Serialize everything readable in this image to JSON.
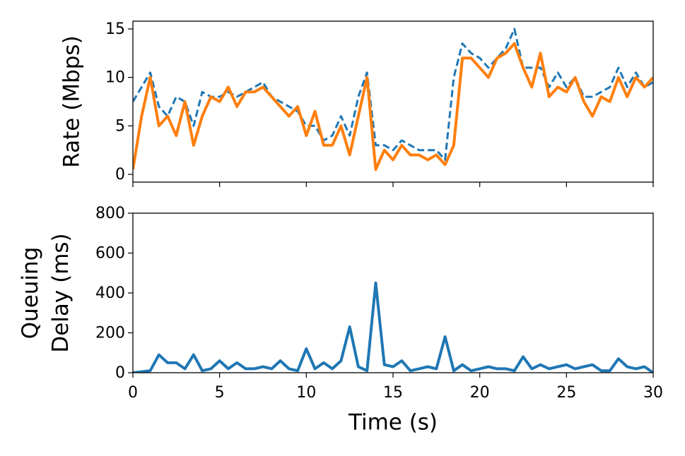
{
  "chart_data": [
    {
      "type": "line",
      "x": [
        0,
        0.5,
        1,
        1.5,
        2,
        2.5,
        3,
        3.5,
        4,
        4.5,
        5,
        5.5,
        6,
        6.5,
        7,
        7.5,
        8,
        8.5,
        9,
        9.5,
        10,
        10.5,
        11,
        11.5,
        12,
        12.5,
        13,
        13.5,
        14,
        14.5,
        15,
        15.5,
        16,
        16.5,
        17,
        17.5,
        18,
        18.5,
        19,
        19.5,
        20,
        20.5,
        21,
        21.5,
        22,
        22.5,
        23,
        23.5,
        24,
        24.5,
        25,
        25.5,
        26,
        26.5,
        27,
        27.5,
        28,
        28.5,
        29,
        29.5,
        30
      ],
      "series": [
        {
          "color": "#1f77b4",
          "style": "dashed",
          "values": [
            7.5,
            9,
            10.5,
            7,
            6,
            8,
            7.5,
            5,
            8.5,
            8,
            8,
            8.5,
            8,
            8.5,
            9,
            9.5,
            8,
            7.5,
            7,
            6.5,
            5,
            5,
            3.5,
            4,
            6,
            4,
            8,
            10.5,
            3,
            3,
            2.5,
            3.5,
            3,
            2.5,
            2.5,
            2.5,
            1.5,
            10,
            13.5,
            12.5,
            12,
            11,
            12,
            13,
            15,
            11,
            11,
            11,
            9,
            10.5,
            9,
            10,
            8,
            8,
            8.5,
            9,
            11,
            9,
            10.5,
            9,
            9.5
          ]
        },
        {
          "color": "#ff7f0e",
          "style": "solid",
          "values": [
            0.5,
            6,
            10,
            5,
            6,
            4,
            7.5,
            3,
            6,
            8,
            7.5,
            9,
            7,
            8.5,
            8.5,
            9,
            8,
            7,
            6,
            7,
            4,
            6.5,
            3,
            3,
            5,
            2,
            6,
            10,
            0.5,
            2.5,
            1.5,
            3,
            2,
            2,
            1.5,
            2,
            1,
            3,
            12,
            12,
            11,
            10,
            12,
            12.5,
            13.5,
            11,
            9,
            12.5,
            8,
            9,
            8.5,
            10,
            7.5,
            6,
            8,
            7.5,
            10,
            8,
            10,
            9,
            10
          ]
        }
      ],
      "ylabel": "Rate (Mbps)",
      "xlim": [
        0,
        30
      ],
      "xticks": [
        0,
        5,
        10,
        15,
        20,
        25,
        30
      ],
      "ylim": [
        -0.8,
        15.8
      ],
      "yticks": [
        0,
        5,
        10,
        15
      ]
    },
    {
      "type": "line",
      "x": [
        0,
        0.5,
        1,
        1.5,
        2,
        2.5,
        3,
        3.5,
        4,
        4.5,
        5,
        5.5,
        6,
        6.5,
        7,
        7.5,
        8,
        8.5,
        9,
        9.5,
        10,
        10.5,
        11,
        11.5,
        12,
        12.5,
        13,
        13.5,
        14,
        14.5,
        15,
        15.5,
        16,
        16.5,
        17,
        17.5,
        18,
        18.5,
        19,
        19.5,
        20,
        20.5,
        21,
        21.5,
        22,
        22.5,
        23,
        23.5,
        24,
        24.5,
        25,
        25.5,
        26,
        26.5,
        27,
        27.5,
        28,
        28.5,
        29,
        29.5,
        30
      ],
      "series": [
        {
          "color": "#1f77b4",
          "style": "solid",
          "values": [
            0,
            5,
            10,
            90,
            50,
            50,
            20,
            90,
            10,
            20,
            60,
            20,
            50,
            20,
            20,
            30,
            20,
            60,
            20,
            10,
            120,
            20,
            50,
            20,
            60,
            230,
            30,
            10,
            450,
            40,
            30,
            60,
            10,
            20,
            30,
            20,
            180,
            10,
            40,
            10,
            20,
            30,
            20,
            20,
            10,
            80,
            20,
            40,
            20,
            30,
            40,
            20,
            30,
            40,
            10,
            10,
            70,
            30,
            20,
            30,
            0
          ]
        }
      ],
      "ylabel": [
        "Queuing",
        "Delay (ms)"
      ],
      "xlabel": "Time (s)",
      "xlim": [
        0,
        30
      ],
      "xticks": [
        0,
        5,
        10,
        15,
        20,
        25,
        30
      ],
      "ylim": [
        0,
        800
      ],
      "yticks": [
        0,
        200,
        400,
        600,
        800
      ]
    }
  ]
}
